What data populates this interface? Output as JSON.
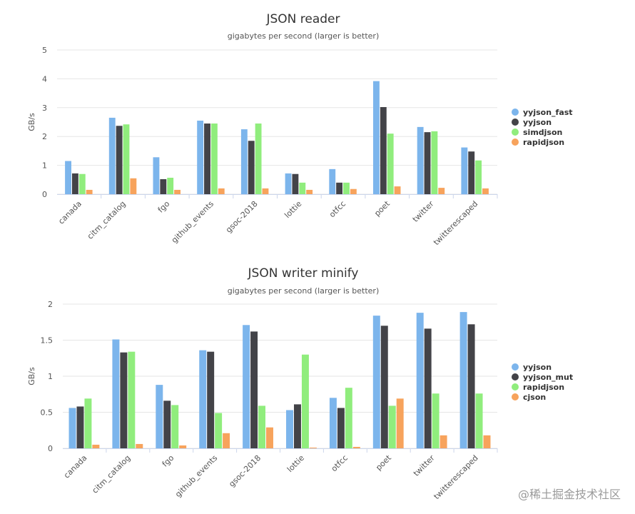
{
  "watermark": "@稀土掘金技术社区",
  "chart_data": [
    {
      "type": "bar",
      "title": "JSON reader",
      "subtitle": "gigabytes per second (larger is better)",
      "ylabel": "GB/s",
      "ylim": [
        0,
        5
      ],
      "yticks": [
        "0",
        "1",
        "2",
        "3",
        "4",
        "5"
      ],
      "grid": true,
      "legend_position": "right",
      "categories": [
        "canada",
        "citm_catalog",
        "fgo",
        "github_events",
        "gsoc-2018",
        "lottie",
        "otfcc",
        "poet",
        "twitter",
        "twitterescaped"
      ],
      "series": [
        {
          "name": "yyjson_fast",
          "color": "#7cb5ec",
          "values": [
            1.15,
            2.65,
            1.28,
            2.55,
            2.25,
            0.72,
            0.87,
            3.92,
            2.33,
            1.62
          ]
        },
        {
          "name": "yyjson",
          "color": "#434348",
          "values": [
            0.72,
            2.37,
            0.52,
            2.45,
            1.85,
            0.7,
            0.4,
            3.02,
            2.15,
            1.48
          ]
        },
        {
          "name": "simdjson",
          "color": "#90ed7d",
          "values": [
            0.7,
            2.42,
            0.57,
            2.45,
            2.45,
            0.4,
            0.4,
            2.1,
            2.18,
            1.17
          ]
        },
        {
          "name": "rapidjson",
          "color": "#f7a35c",
          "values": [
            0.15,
            0.55,
            0.15,
            0.2,
            0.2,
            0.15,
            0.18,
            0.27,
            0.22,
            0.2
          ]
        }
      ]
    },
    {
      "type": "bar",
      "title": "JSON writer minify",
      "subtitle": "gigabytes per second (larger is better)",
      "ylabel": "GB/s",
      "ylim": [
        0,
        2
      ],
      "yticks": [
        "0",
        "0.5",
        "1",
        "1.5",
        "2"
      ],
      "grid": true,
      "legend_position": "right",
      "categories": [
        "canada",
        "citm_catalog",
        "fgo",
        "github_events",
        "gsoc-2018",
        "lottie",
        "otfcc",
        "poet",
        "twitter",
        "twitterescaped"
      ],
      "series": [
        {
          "name": "yyjson",
          "color": "#7cb5ec",
          "values": [
            0.56,
            1.51,
            0.88,
            1.36,
            1.71,
            0.53,
            0.7,
            1.84,
            1.88,
            1.89
          ]
        },
        {
          "name": "yyjson_mut",
          "color": "#434348",
          "values": [
            0.58,
            1.33,
            0.66,
            1.34,
            1.62,
            0.61,
            0.56,
            1.7,
            1.66,
            1.72
          ]
        },
        {
          "name": "rapidjson",
          "color": "#90ed7d",
          "values": [
            0.69,
            1.34,
            0.6,
            0.49,
            0.59,
            1.3,
            0.84,
            0.59,
            0.76,
            0.76
          ]
        },
        {
          "name": "cjson",
          "color": "#f7a35c",
          "values": [
            0.05,
            0.06,
            0.04,
            0.21,
            0.29,
            0.01,
            0.02,
            0.69,
            0.18,
            0.18
          ]
        }
      ]
    }
  ]
}
